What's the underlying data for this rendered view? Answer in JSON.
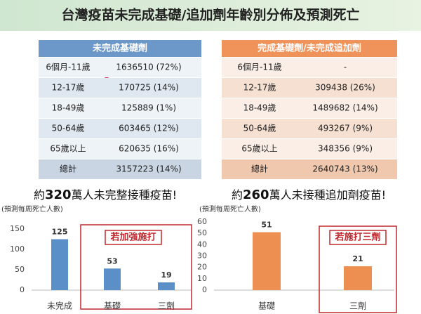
{
  "title": "台灣疫苗未完成基礎/追加劑年齡別分佈及預測死亡",
  "tables": [
    {
      "header": "未完成基礎劑",
      "rows": [
        [
          "6個月-11歲",
          "1636510 (72%)"
        ],
        [
          "12-17歲",
          "170725 (14%)"
        ],
        [
          "18-49歲",
          "125889 (1%)"
        ],
        [
          "50-64歲",
          "603465 (12%)"
        ],
        [
          "65歲以上",
          "620635 (16%)"
        ],
        [
          "總計",
          "3157223 (14%)"
        ]
      ]
    },
    {
      "header": "完成基礎劑/未完成追加劑",
      "rows": [
        [
          "6個月-11歲",
          "-"
        ],
        [
          "12-17歲",
          "309438 (26%)"
        ],
        [
          "18-49歲",
          "1489682 (14%)"
        ],
        [
          "50-64歲",
          "493267 (9%)"
        ],
        [
          "65歲以上",
          "348356 (9%)"
        ],
        [
          "總計",
          "2640743 (13%)"
        ]
      ]
    }
  ],
  "captions": [
    [
      "約",
      "320",
      "萬人未完整接種疫苗!"
    ],
    [
      "約",
      "260",
      "萬人未接種追加劑疫苗!"
    ]
  ],
  "chart_data": [
    {
      "type": "bar",
      "y_label": "(預測每周死亡人數)",
      "categories": [
        "未完成",
        "基礎",
        "三劑"
      ],
      "values": [
        125,
        53,
        19
      ],
      "color": "#5b8fc7",
      "ylim": [
        0,
        150
      ],
      "yticks": [
        0,
        50,
        100,
        150
      ],
      "annotation": "若加強施打"
    },
    {
      "type": "bar",
      "y_label": "(預測每周死亡人數)",
      "categories": [
        "基礎",
        "三劑"
      ],
      "values": [
        51,
        21
      ],
      "color": "#ed8f50",
      "ylim": [
        0,
        60
      ],
      "yticks": [
        0,
        10,
        20,
        30,
        40,
        50,
        60
      ],
      "annotation": "若施打三劑"
    }
  ]
}
